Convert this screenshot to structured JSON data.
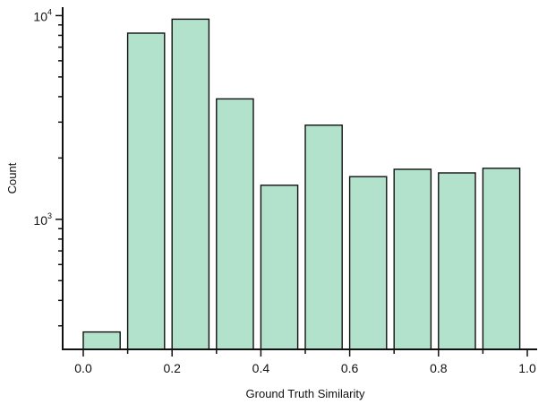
{
  "chart_data": {
    "type": "bar",
    "title": "",
    "xlabel": "Ground Truth Similarity",
    "ylabel": "Count",
    "y_scale": "log",
    "ylim": [
      230,
      11000
    ],
    "xlim": [
      -0.05,
      1.02
    ],
    "bar_color": "#b2e2cb",
    "edge_color": "#111111",
    "grid": false,
    "bins": [
      {
        "x0": 0.0,
        "x1": 0.083,
        "value": 280
      },
      {
        "x0": 0.1,
        "x1": 0.183,
        "value": 8200
      },
      {
        "x0": 0.2,
        "x1": 0.283,
        "value": 9600
      },
      {
        "x0": 0.3,
        "x1": 0.383,
        "value": 3900
      },
      {
        "x0": 0.4,
        "x1": 0.483,
        "value": 1470
      },
      {
        "x0": 0.5,
        "x1": 0.583,
        "value": 2900
      },
      {
        "x0": 0.6,
        "x1": 0.683,
        "value": 1620
      },
      {
        "x0": 0.7,
        "x1": 0.783,
        "value": 1760
      },
      {
        "x0": 0.8,
        "x1": 0.883,
        "value": 1690
      },
      {
        "x0": 0.9,
        "x1": 0.983,
        "value": 1780
      }
    ],
    "x_ticks": [
      {
        "value": 0.0,
        "label": "0.0"
      },
      {
        "value": 0.2,
        "label": "0.2"
      },
      {
        "value": 0.4,
        "label": "0.4"
      },
      {
        "value": 0.6,
        "label": "0.6"
      },
      {
        "value": 0.8,
        "label": "0.8"
      },
      {
        "value": 1.0,
        "label": "1.0"
      }
    ],
    "x_minor_ticks": [
      0.1,
      0.3,
      0.5,
      0.7,
      0.9
    ],
    "y_major_ticks": [
      {
        "value": 1000,
        "base": "10",
        "exp": "3"
      },
      {
        "value": 10000,
        "base": "10",
        "exp": "4"
      }
    ],
    "y_minor_ticks": [
      300,
      400,
      500,
      600,
      700,
      800,
      900,
      2000,
      3000,
      4000,
      5000,
      6000,
      7000,
      8000,
      9000
    ]
  }
}
